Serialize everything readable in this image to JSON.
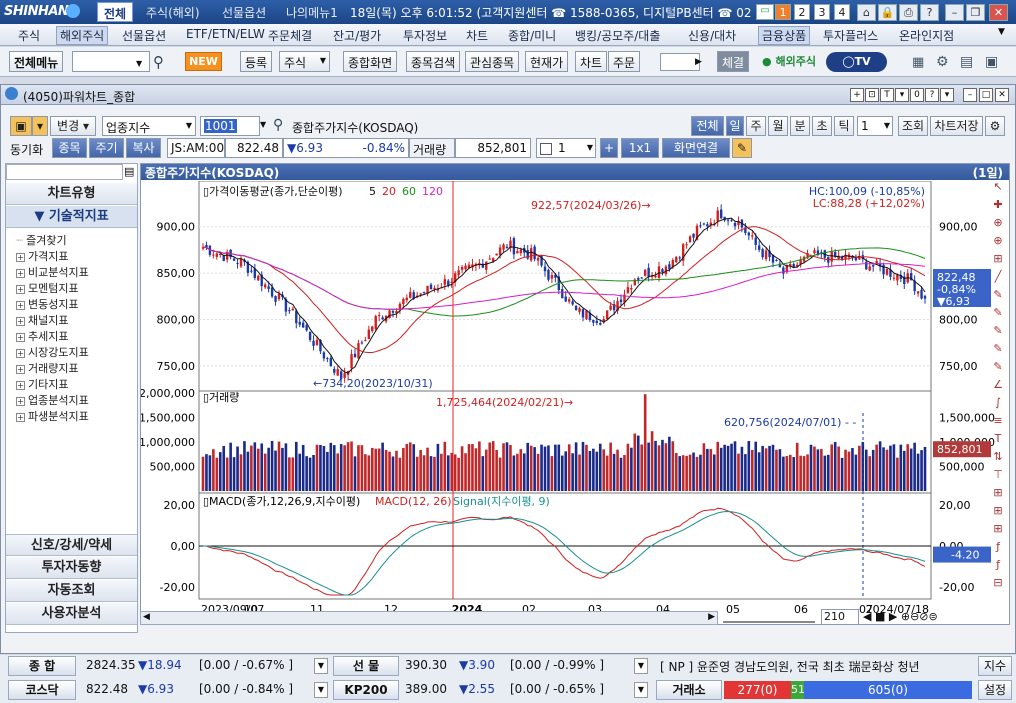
{
  "titlebar": {
    "logo": "SHINHAN",
    "tabs": [
      "전체",
      "주식(해외)",
      "선물옵션",
      "나의메뉴1"
    ],
    "clock": "18일(목) 오후 6:01:52 (고객지원센터 ☎ 1588-0365, 디지털PB센터 ☎ 02",
    "num_buttons": [
      "1",
      "2",
      "3",
      "4"
    ]
  },
  "menubar": {
    "items": [
      "주식",
      "해외주식",
      "선물옵션",
      "ETF/ETN/ELW",
      "주문체결",
      "잔고/평가",
      "투자정보",
      "차트",
      "종합/미니",
      "뱅킹/공모주/대출",
      "신용/대차",
      "금융상품",
      "투자플러스",
      "온라인지점"
    ]
  },
  "toolbar": {
    "all_menu": "전체메뉴",
    "new_badge": "NEW",
    "register": "등록",
    "stock_select": "주식",
    "buttons": [
      "종합화면",
      "종목검색",
      "관심종목",
      "현재가",
      "차트",
      "주문"
    ],
    "fill": "체결",
    "overseas": "해외주식"
  },
  "window": {
    "title": "(4050)파워차트_종합"
  },
  "controls": {
    "change_btn": "변경",
    "index_select": "업종지수",
    "code": "1001",
    "name": "종합주가지수(KOSDAQ)",
    "period_buttons": [
      "전체",
      "일",
      "주",
      "월",
      "분",
      "초",
      "틱"
    ],
    "period_count": "1",
    "lookup": "조회",
    "save_chart": "차트저장",
    "sync_label": "동기화",
    "sync_buttons": [
      "종목",
      "주기",
      "복사"
    ],
    "market_code": "JS:AM:00",
    "price": "822.48",
    "change": "▼6.93",
    "rate": "-0.84%",
    "volume_label": "거래량",
    "volume": "852,801",
    "chart_count": "1",
    "ratio": "1x1",
    "screen_link": "화면연결"
  },
  "sidebar": {
    "header_type": "차트유형",
    "header_tech": "▼ 기술적지표",
    "tree": [
      {
        "label": "즐겨찾기",
        "plus": false
      },
      {
        "label": "가격지표",
        "plus": true
      },
      {
        "label": "비교분석지표",
        "plus": true
      },
      {
        "label": "모멘텀지표",
        "plus": true
      },
      {
        "label": "변동성지표",
        "plus": true
      },
      {
        "label": "채널지표",
        "plus": true
      },
      {
        "label": "추세지표",
        "plus": true
      },
      {
        "label": "시장강도지표",
        "plus": true
      },
      {
        "label": "거래량지표",
        "plus": true
      },
      {
        "label": "기타지표",
        "plus": true
      },
      {
        "label": "업종분석지표",
        "plus": true
      },
      {
        "label": "파생분석지표",
        "plus": true
      }
    ],
    "bottom": [
      "신호/강세/약세",
      "투자자동향",
      "자동조회",
      "사용자분석"
    ]
  },
  "chart_header": {
    "title": "종합주가지수(KOSDAQ)",
    "period": "(1일)"
  },
  "chart_data": [
    {
      "type": "line",
      "title": "가격이동평균(종가,단순이평)",
      "series": [
        {
          "name": "5",
          "color": "#111111"
        },
        {
          "name": "20",
          "color": "#d21f1f"
        },
        {
          "name": "60",
          "color": "#1a8f1a"
        },
        {
          "name": "120",
          "color": "#d61ecb"
        }
      ],
      "ylim": [
        725,
        945
      ],
      "yticks": [
        "900,00",
        "850,00",
        "800,00",
        "750,00"
      ],
      "annotations": {
        "high": "922,57(2024/03/26)",
        "low": "734,20(2023/10/31)",
        "hc": "HC:100,09 (-10,85%)",
        "lc": "LC:88,28 (+12,02%)"
      },
      "last_price": "822,48",
      "last_rate": "-0,84%",
      "last_change": "▼6,93",
      "x": [
        "2023-09",
        "2023-10",
        "2023-11",
        "2023-12",
        "2024-01",
        "2024-02",
        "2024-03",
        "2024-04",
        "2024-05",
        "2024-06",
        "2024-07"
      ],
      "close_monthly": [
        880,
        840,
        750,
        830,
        870,
        820,
        880,
        900,
        860,
        850,
        820
      ]
    },
    {
      "type": "bar",
      "title": "거래량",
      "ylim": [
        0,
        2000000
      ],
      "yticks": [
        "2,000,000",
        "1,500,000",
        "1,000,000",
        "500,000"
      ],
      "annotations": {
        "high": "1,725,464(2024/02/21)",
        "mark": "620,756(2024/07/01)"
      },
      "last_value": "852,801"
    },
    {
      "type": "line",
      "title": "MACD(종가,12,26,9,지수이평)",
      "series": [
        {
          "name": "MACD(12, 26)",
          "color": "#d21f1f"
        },
        {
          "name": "Signal(지수이평, 9)",
          "color": "#1a8f8f"
        }
      ],
      "ylim": [
        -25,
        25
      ],
      "yticks": [
        "20,00",
        "0,00",
        "-20,00"
      ],
      "last_value": "-4.20"
    }
  ],
  "xaxis": {
    "labels": [
      "2023/09/07",
      "10",
      "11",
      "12",
      "2024",
      "02",
      "03",
      "04",
      "05",
      "06",
      "07",
      "2024/07/18"
    ]
  },
  "scroll": {
    "count": "210"
  },
  "status": {
    "row1": {
      "label1": "종 합",
      "val1": "2824.35",
      "chg1": "▼18.94",
      "rate1": "[0.00 / -0.67% ]",
      "label2": "선 물",
      "val2": "390.30",
      "chg2": "▼3.90",
      "rate2": "[0.00 / -0.99% ]",
      "news": "[ NP ] 윤준영 경남도의원, 전국 최초 瑞문화상 청년",
      "btn": "지수"
    },
    "row2": {
      "label1": "코스닥",
      "val1": "822.48",
      "chg1": "▼6.93",
      "rate1": "[0.00 / -0.84% ]",
      "label2": "KP200",
      "val2": "389.00",
      "chg2": "▼2.55",
      "rate2": "[0.00 / -0.65% ]",
      "exchange": "거래소",
      "up": "277(0)",
      "flat": "51",
      "down": "605(0)",
      "btn": "설정"
    }
  }
}
